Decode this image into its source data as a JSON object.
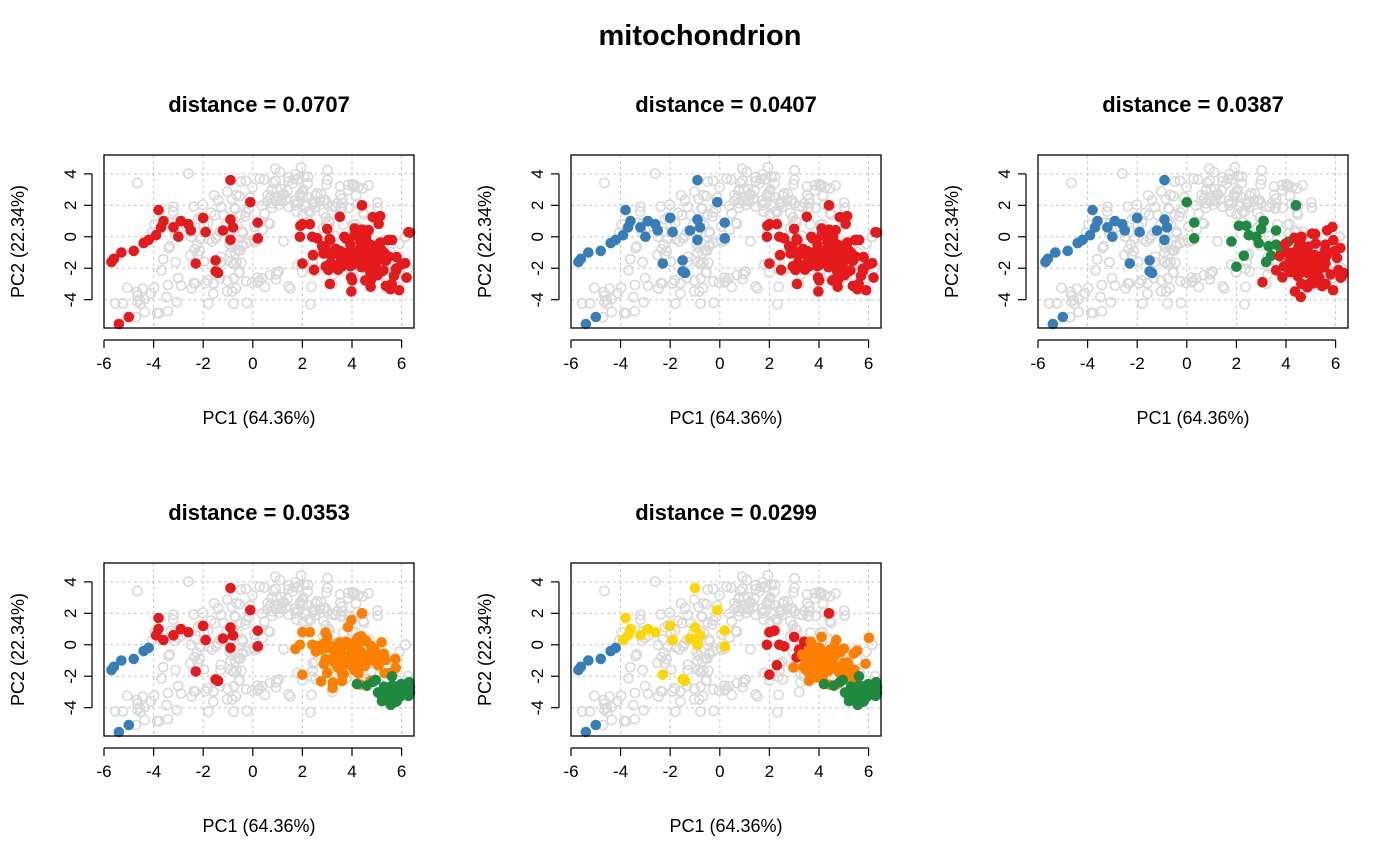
{
  "figure": {
    "title": "mitochondrion"
  },
  "colors": {
    "background": "#d9d9d9",
    "red": "#e41a1c",
    "blue": "#377eb8",
    "green": "#1f8a3f",
    "orange": "#ff7f00",
    "yellow": "#ffd700",
    "grid": "#c8c8c8"
  },
  "chart_data": [
    {
      "type": "scatter",
      "title": "distance =  0.0707",
      "xlabel": "PC1 (64.36%)",
      "ylabel": "PC2 (22.34%)",
      "xlim": [
        -6,
        6.5
      ],
      "ylim": [
        -5.8,
        5.2
      ],
      "xticks": [
        "-6",
        "-4",
        "-2",
        "0",
        "2",
        "4",
        "6"
      ],
      "yticks": [
        "-4",
        "-2",
        "0",
        "2",
        "4"
      ],
      "grid": true,
      "background_points": "all gray open circles",
      "groups": [
        {
          "color": "red",
          "region": "left-arc"
        },
        {
          "color": "red",
          "region": "right-cluster"
        },
        {
          "color": "red",
          "region": "bottom-left"
        }
      ]
    },
    {
      "type": "scatter",
      "title": "distance =  0.0407",
      "xlabel": "PC1 (64.36%)",
      "ylabel": "PC2 (22.34%)",
      "xlim": [
        -6,
        6.5
      ],
      "ylim": [
        -5.8,
        5.2
      ],
      "xticks": [
        "-6",
        "-4",
        "-2",
        "0",
        "2",
        "4",
        "6"
      ],
      "yticks": [
        "-4",
        "-2",
        "0",
        "2",
        "4"
      ],
      "grid": true,
      "groups": [
        {
          "color": "blue",
          "region": "left-arc"
        },
        {
          "color": "red",
          "region": "right-cluster"
        },
        {
          "color": "blue",
          "region": "bottom-left"
        }
      ]
    },
    {
      "type": "scatter",
      "title": "distance =  0.0387",
      "xlabel": "PC1 (64.36%)",
      "ylabel": "PC2 (22.34%)",
      "xlim": [
        -6,
        6.5
      ],
      "ylim": [
        -5.8,
        5.2
      ],
      "xticks": [
        "-6",
        "-4",
        "-2",
        "0",
        "2",
        "4",
        "6"
      ],
      "yticks": [
        "-4",
        "-2",
        "0",
        "2",
        "4"
      ],
      "grid": true,
      "groups": [
        {
          "color": "blue",
          "region": "left-arc"
        },
        {
          "color": "green",
          "region": "middle-right"
        },
        {
          "color": "red",
          "region": "far-right"
        },
        {
          "color": "blue",
          "region": "bottom-left"
        }
      ]
    },
    {
      "type": "scatter",
      "title": "distance =  0.0353",
      "xlabel": "PC1 (64.36%)",
      "ylabel": "PC2 (22.34%)",
      "xlim": [
        -6,
        6.5
      ],
      "ylim": [
        -5.8,
        5.2
      ],
      "xticks": [
        "-6",
        "-4",
        "-2",
        "0",
        "2",
        "4",
        "6"
      ],
      "yticks": [
        "-4",
        "-2",
        "0",
        "2",
        "4"
      ],
      "grid": true,
      "groups": [
        {
          "color": "blue",
          "region": "far-left"
        },
        {
          "color": "red",
          "region": "left-middle"
        },
        {
          "color": "orange",
          "region": "right-upper"
        },
        {
          "color": "green",
          "region": "right-lower"
        },
        {
          "color": "blue",
          "region": "bottom-left"
        }
      ]
    },
    {
      "type": "scatter",
      "title": "distance =  0.0299",
      "xlabel": "PC1 (64.36%)",
      "ylabel": "PC2 (22.34%)",
      "xlim": [
        -6,
        6.5
      ],
      "ylim": [
        -5.8,
        5.2
      ],
      "xticks": [
        "-6",
        "-4",
        "-2",
        "0",
        "2",
        "4",
        "6"
      ],
      "yticks": [
        "-4",
        "-2",
        "0",
        "2",
        "4"
      ],
      "grid": true,
      "groups": [
        {
          "color": "blue",
          "region": "far-left"
        },
        {
          "color": "yellow",
          "region": "left-middle"
        },
        {
          "color": "red",
          "region": "middle-right"
        },
        {
          "color": "orange",
          "region": "right-upper"
        },
        {
          "color": "green",
          "region": "right-lower"
        },
        {
          "color": "blue",
          "region": "bottom-left"
        }
      ]
    }
  ]
}
